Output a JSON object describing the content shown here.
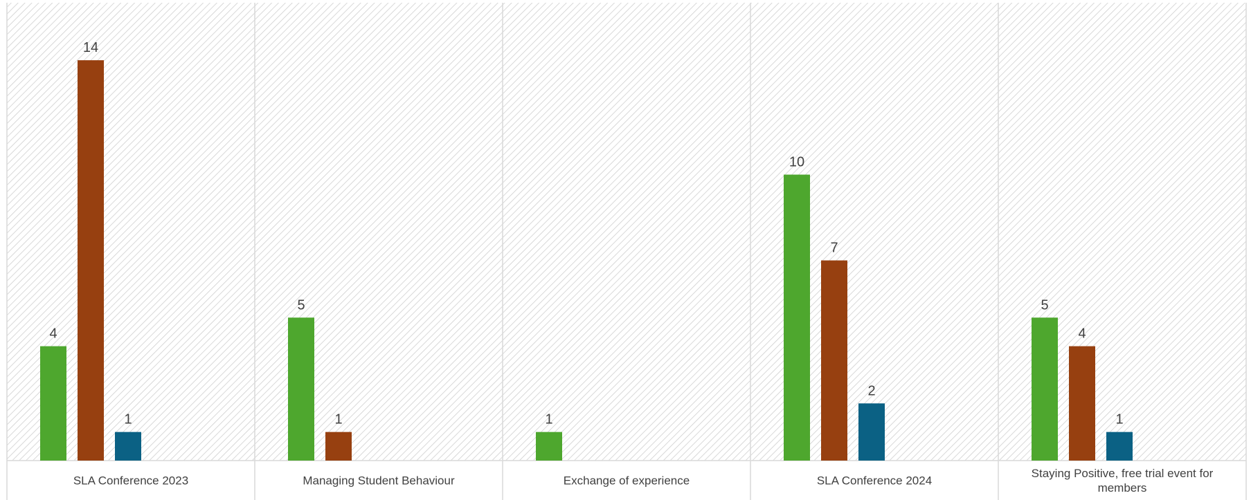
{
  "chart_data": {
    "type": "bar",
    "title": "",
    "xlabel": "",
    "ylabel": "",
    "ylim": [
      0,
      16
    ],
    "grid": false,
    "legend": "none",
    "categories": [
      [
        "SLA Conference 2023"
      ],
      [
        "Managing Student Behaviour"
      ],
      [
        "Exchange of experience"
      ],
      [
        "SLA Conference 2024"
      ],
      [
        "Staying Positive, free trial event for",
        "members"
      ]
    ],
    "series": [
      {
        "color": "#4ea72e",
        "values": [
          4,
          5,
          1,
          10,
          5
        ]
      },
      {
        "color": "#974010",
        "values": [
          14,
          1,
          0,
          7,
          4
        ]
      },
      {
        "color": "#0b6184",
        "values": [
          1,
          0,
          0,
          2,
          1
        ]
      }
    ],
    "background": "diagonal-hatch"
  }
}
